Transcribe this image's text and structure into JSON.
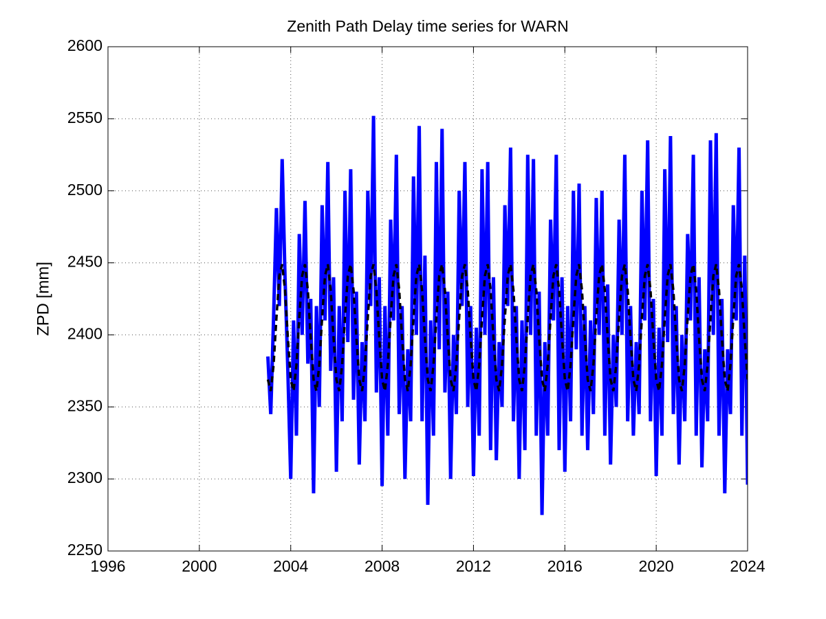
{
  "chart_data": {
    "type": "line",
    "title": "Zenith Path Delay time series for WARN",
    "ylabel": "ZPD [mm]",
    "xlim": [
      1996,
      2024
    ],
    "xticks": [
      1996,
      2000,
      2004,
      2008,
      2012,
      2016,
      2020,
      2024
    ],
    "ylim": [
      2250,
      2600
    ],
    "yticks": [
      2250,
      2300,
      2350,
      2400,
      2450,
      2500,
      2550,
      2600
    ],
    "grid": true,
    "x": [
      2003,
      2003.125,
      2003.25,
      2003.375,
      2003.5,
      2003.625,
      2003.75,
      2003.875,
      2004,
      2004.125,
      2004.25,
      2004.375,
      2004.5,
      2004.625,
      2004.75,
      2004.875,
      2005,
      2005.125,
      2005.25,
      2005.375,
      2005.5,
      2005.625,
      2005.75,
      2005.875,
      2006,
      2006.125,
      2006.25,
      2006.375,
      2006.5,
      2006.625,
      2006.75,
      2006.875,
      2007,
      2007.125,
      2007.25,
      2007.375,
      2007.5,
      2007.625,
      2007.75,
      2007.875,
      2008,
      2008.125,
      2008.25,
      2008.375,
      2008.5,
      2008.625,
      2008.75,
      2008.875,
      2009,
      2009.125,
      2009.25,
      2009.375,
      2009.5,
      2009.625,
      2009.75,
      2009.875,
      2010,
      2010.125,
      2010.25,
      2010.375,
      2010.5,
      2010.625,
      2010.75,
      2010.875,
      2011,
      2011.125,
      2011.25,
      2011.375,
      2011.5,
      2011.625,
      2011.75,
      2011.875,
      2012,
      2012.125,
      2012.25,
      2012.375,
      2012.5,
      2012.625,
      2012.75,
      2012.875,
      2013,
      2013.125,
      2013.25,
      2013.375,
      2013.5,
      2013.625,
      2013.75,
      2013.875,
      2014,
      2014.125,
      2014.25,
      2014.375,
      2014.5,
      2014.625,
      2014.75,
      2014.875,
      2015,
      2015.125,
      2015.25,
      2015.375,
      2015.5,
      2015.625,
      2015.75,
      2015.875,
      2016,
      2016.125,
      2016.25,
      2016.375,
      2016.5,
      2016.625,
      2016.75,
      2016.875,
      2017,
      2017.125,
      2017.25,
      2017.375,
      2017.5,
      2017.625,
      2017.75,
      2017.875,
      2018,
      2018.125,
      2018.25,
      2018.375,
      2018.5,
      2018.625,
      2018.75,
      2018.875,
      2019,
      2019.125,
      2019.25,
      2019.375,
      2019.5,
      2019.625,
      2019.75,
      2019.875,
      2020,
      2020.125,
      2020.25,
      2020.375,
      2020.5,
      2020.625,
      2020.75,
      2020.875,
      2021,
      2021.125,
      2021.25,
      2021.375,
      2021.5,
      2021.625,
      2021.75,
      2021.875,
      2022,
      2022.125,
      2022.25,
      2022.375,
      2022.5,
      2022.625,
      2022.75,
      2022.875,
      2023,
      2023.125,
      2023.25,
      2023.375,
      2023.5,
      2023.625,
      2023.75,
      2023.875,
      2024
    ],
    "series": [
      {
        "color": "#0000ff",
        "style": "solid",
        "values": [
          2385,
          2345,
          2412,
          2488,
          2420,
          2522,
          2440,
          2375,
          2300,
          2410,
          2330,
          2470,
          2400,
          2493,
          2380,
          2425,
          2290,
          2420,
          2350,
          2490,
          2410,
          2520,
          2375,
          2440,
          2305,
          2420,
          2340,
          2500,
          2395,
          2515,
          2355,
          2430,
          2310,
          2395,
          2340,
          2500,
          2420,
          2552,
          2360,
          2440,
          2295,
          2420,
          2330,
          2480,
          2410,
          2525,
          2345,
          2420,
          2300,
          2390,
          2340,
          2510,
          2400,
          2545,
          2340,
          2455,
          2282,
          2410,
          2330,
          2520,
          2390,
          2543,
          2360,
          2430,
          2300,
          2400,
          2345,
          2500,
          2420,
          2520,
          2350,
          2420,
          2302,
          2405,
          2330,
          2515,
          2400,
          2520,
          2320,
          2440,
          2313,
          2395,
          2350,
          2490,
          2420,
          2530,
          2340,
          2420,
          2300,
          2410,
          2320,
          2525,
          2400,
          2522,
          2330,
          2430,
          2275,
          2395,
          2330,
          2480,
          2410,
          2525,
          2320,
          2440,
          2305,
          2420,
          2340,
          2500,
          2390,
          2505,
          2330,
          2420,
          2320,
          2410,
          2345,
          2495,
          2400,
          2500,
          2330,
          2435,
          2310,
          2400,
          2350,
          2480,
          2400,
          2525,
          2340,
          2420,
          2330,
          2395,
          2345,
          2500,
          2410,
          2535,
          2340,
          2425,
          2302,
          2405,
          2330,
          2515,
          2395,
          2538,
          2345,
          2420,
          2310,
          2400,
          2340,
          2470,
          2410,
          2525,
          2330,
          2440,
          2308,
          2390,
          2340,
          2535,
          2400,
          2540,
          2330,
          2425,
          2290,
          2390,
          2345,
          2490,
          2410,
          2530,
          2330,
          2455,
          2296
        ]
      },
      {
        "color": "#000000",
        "style": "dashed",
        "values": [
          2369,
          2361,
          2379,
          2412,
          2441,
          2449,
          2431,
          2398,
          2369,
          2361,
          2379,
          2412,
          2441,
          2449,
          2431,
          2398,
          2369,
          2361,
          2379,
          2412,
          2441,
          2449,
          2431,
          2398,
          2369,
          2361,
          2379,
          2412,
          2441,
          2449,
          2431,
          2398,
          2369,
          2361,
          2379,
          2412,
          2441,
          2449,
          2431,
          2398,
          2369,
          2361,
          2379,
          2412,
          2441,
          2449,
          2431,
          2398,
          2369,
          2361,
          2379,
          2412,
          2441,
          2449,
          2431,
          2398,
          2369,
          2361,
          2379,
          2412,
          2441,
          2449,
          2431,
          2398,
          2369,
          2361,
          2379,
          2412,
          2441,
          2449,
          2431,
          2398,
          2369,
          2361,
          2379,
          2412,
          2441,
          2449,
          2431,
          2398,
          2369,
          2361,
          2379,
          2412,
          2441,
          2449,
          2431,
          2398,
          2369,
          2361,
          2379,
          2412,
          2441,
          2449,
          2431,
          2398,
          2369,
          2361,
          2379,
          2412,
          2441,
          2449,
          2431,
          2398,
          2369,
          2361,
          2379,
          2412,
          2441,
          2449,
          2431,
          2398,
          2369,
          2361,
          2379,
          2412,
          2441,
          2449,
          2431,
          2398,
          2369,
          2361,
          2379,
          2412,
          2441,
          2449,
          2431,
          2398,
          2369,
          2361,
          2379,
          2412,
          2441,
          2449,
          2431,
          2398,
          2369,
          2361,
          2379,
          2412,
          2441,
          2449,
          2431,
          2398,
          2369,
          2361,
          2379,
          2412,
          2441,
          2449,
          2431,
          2398,
          2369,
          2361,
          2379,
          2412,
          2441,
          2449,
          2431,
          2398,
          2369,
          2361,
          2379,
          2412,
          2441,
          2449,
          2431,
          2398,
          2369
        ]
      }
    ]
  }
}
